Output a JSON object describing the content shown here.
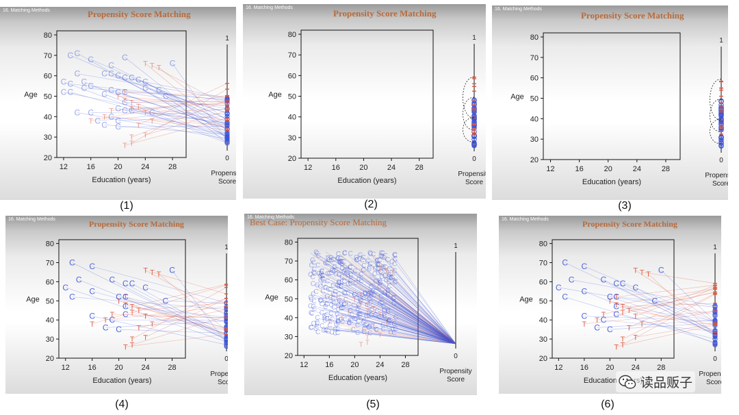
{
  "watermark": {
    "text": "读品贩子"
  },
  "colors": {
    "treated": "#e0553a",
    "control": "#3d55d8",
    "title": "#b86a3a",
    "frame": "#111111"
  },
  "panels": [
    {
      "header": "16. Matching Methods",
      "title": "Propensity Score Matching",
      "caption": "(1)",
      "state": "all-lines"
    },
    {
      "header": "16. Matching Methods",
      "title": "Propensity Score Matching",
      "caption": "(2)",
      "state": "score-only"
    },
    {
      "header": "16. Matching Methods",
      "title": "Propensity Score Matching",
      "caption": "(3)",
      "state": "score-only"
    },
    {
      "header": "16. Matching Methods",
      "title": "Propensity Score Matching",
      "caption": "(4)",
      "state": "matched"
    },
    {
      "header": "16. Matching Methods",
      "title": "Best Case: Propensity Score Matching",
      "caption": "(5)",
      "state": "best-case"
    },
    {
      "header": "16. Matching Methods",
      "title": "Propensity Score Matching",
      "caption": "(6)",
      "state": "matched"
    }
  ],
  "chart_data": {
    "type": "scatter",
    "xlabel": "Education (years)",
    "ylabel": "Age",
    "score_label_top": "Propensity",
    "score_label_bottom": "Score",
    "xlim": [
      11,
      30
    ],
    "ylim": [
      20,
      82
    ],
    "xticks": [
      12,
      16,
      20,
      24,
      28
    ],
    "yticks": [
      20,
      30,
      40,
      50,
      60,
      70,
      80
    ],
    "score_range": [
      0,
      1
    ],
    "score_ticks": [
      "1",
      "0"
    ],
    "legend": {
      "T": "treated",
      "C": "control"
    },
    "treated": [
      [
        20,
        50
      ],
      [
        21,
        48
      ],
      [
        22,
        44
      ],
      [
        23,
        45
      ],
      [
        24,
        42
      ],
      [
        22,
        47
      ],
      [
        25,
        38
      ],
      [
        23,
        36
      ],
      [
        22,
        30
      ],
      [
        24,
        31
      ],
      [
        21,
        26
      ],
      [
        22,
        27
      ],
      [
        21,
        52
      ],
      [
        24,
        66
      ],
      [
        25,
        65
      ],
      [
        26,
        64
      ],
      [
        16,
        38
      ],
      [
        18,
        40
      ],
      [
        19,
        43
      ]
    ],
    "control": [
      [
        13,
        70
      ],
      [
        14,
        71
      ],
      [
        12,
        57
      ],
      [
        13,
        56
      ],
      [
        14,
        61
      ],
      [
        15,
        57
      ],
      [
        16,
        55
      ],
      [
        15,
        54
      ],
      [
        13,
        52
      ],
      [
        12,
        52
      ],
      [
        16,
        68
      ],
      [
        18,
        61
      ],
      [
        19,
        61
      ],
      [
        20,
        60
      ],
      [
        21,
        59
      ],
      [
        19,
        65
      ],
      [
        22,
        59
      ],
      [
        23,
        58
      ],
      [
        24,
        57
      ],
      [
        21,
        69
      ],
      [
        21,
        52
      ],
      [
        19,
        53
      ],
      [
        20,
        52
      ],
      [
        18,
        51
      ],
      [
        21,
        47
      ],
      [
        20,
        44
      ],
      [
        21,
        43
      ],
      [
        22,
        43
      ],
      [
        19,
        40
      ],
      [
        20,
        38
      ],
      [
        20,
        35
      ],
      [
        17,
        38
      ],
      [
        16,
        42
      ],
      [
        14,
        42
      ],
      [
        18,
        36
      ],
      [
        25,
        42
      ],
      [
        28,
        66
      ],
      [
        26,
        53
      ],
      [
        27,
        50
      ],
      [
        24,
        54
      ]
    ],
    "best_case_note": "dense cloud of control units around every treated unit, all projecting to a single propensity score"
  }
}
